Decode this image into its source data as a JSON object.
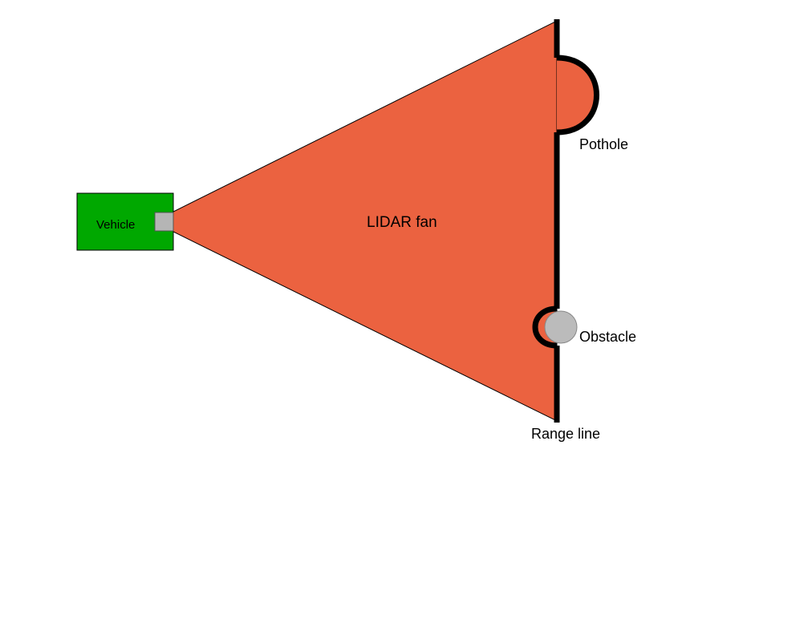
{
  "labels": {
    "vehicle": "Vehicle",
    "fan": "LIDAR fan",
    "pothole": "Pothole",
    "obstacle": "Obstacle",
    "range_line": "Range line"
  },
  "colors": {
    "vehicle_body": "#00a800",
    "sensor": "#b5b5b5",
    "fan": "#eb6240",
    "range_line": "#000000",
    "obstacle": "#bbbbbb",
    "background": "#ffffff"
  }
}
